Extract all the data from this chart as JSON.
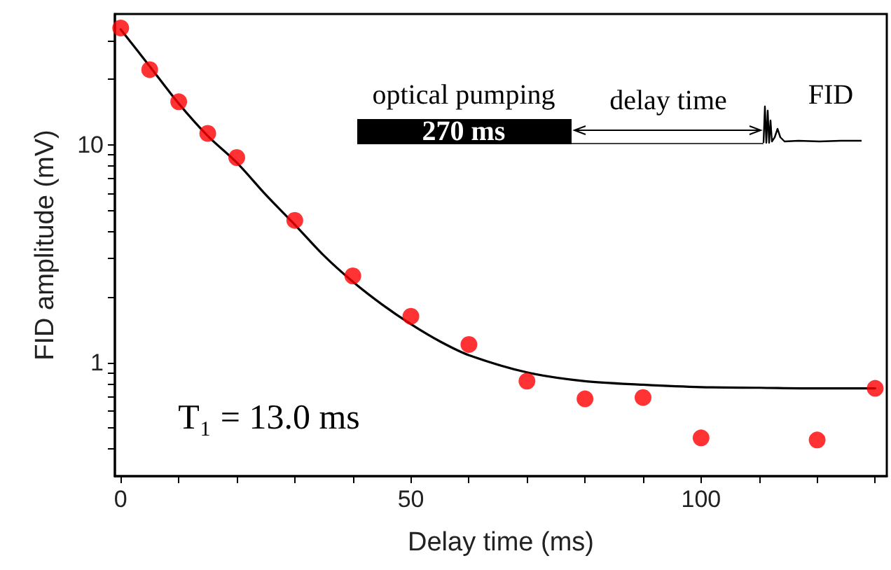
{
  "chart_data": {
    "type": "scatter",
    "xlabel": "Delay time (ms)",
    "ylabel": "FID amplitude (mV)",
    "xlim": [
      -1,
      132
    ],
    "ylim": [
      0.3,
      40
    ],
    "log": "y",
    "xticks": [
      0,
      {
        "value": 10,
        "label": null
      },
      {
        "value": 20,
        "label": null
      },
      {
        "value": 30,
        "label": null
      },
      {
        "value": 40,
        "label": null
      },
      50,
      {
        "value": 60,
        "label": null
      },
      {
        "value": 70,
        "label": null
      },
      {
        "value": 80,
        "label": null
      },
      {
        "value": 90,
        "label": null
      },
      100,
      {
        "value": 110,
        "label": null
      },
      {
        "value": 120,
        "label": null
      },
      {
        "value": 130,
        "label": null
      }
    ],
    "yticks": [
      {
        "value": 0.4,
        "label": null
      },
      {
        "value": 0.5,
        "label": null
      },
      {
        "value": 0.6,
        "label": null
      },
      {
        "value": 0.7,
        "label": null
      },
      {
        "value": 0.8,
        "label": null
      },
      {
        "value": 0.9,
        "label": null
      },
      1,
      {
        "value": 2,
        "label": null
      },
      {
        "value": 3,
        "label": null
      },
      {
        "value": 4,
        "label": null
      },
      {
        "value": 5,
        "label": null
      },
      {
        "value": 6,
        "label": null
      },
      {
        "value": 7,
        "label": null
      },
      {
        "value": 8,
        "label": null
      },
      {
        "value": 9,
        "label": null
      },
      10,
      {
        "value": 20,
        "label": null
      },
      {
        "value": 30,
        "label": null
      }
    ],
    "grid": false,
    "marker": "circle",
    "series": [
      {
        "type": "line",
        "color": "#000000",
        "marker": "none",
        "line_style": "solid",
        "x": [
          0,
          5,
          10,
          15,
          20,
          25,
          30,
          35,
          40,
          45,
          50,
          55,
          60,
          70,
          80,
          90,
          100,
          110,
          120,
          130
        ],
        "values": [
          34,
          23,
          15.5,
          11,
          8.3,
          5.9,
          4.3,
          3.1,
          2.35,
          1.85,
          1.5,
          1.25,
          1.08,
          0.9,
          0.82,
          0.79,
          0.77,
          0.765,
          0.76,
          0.76
        ]
      },
      {
        "color": "#ff0000",
        "x": [
          0,
          5,
          10,
          15,
          20,
          30,
          40,
          50,
          60,
          70,
          80,
          90,
          100,
          120,
          130
        ],
        "values": [
          34.5,
          22.2,
          15.8,
          11.3,
          8.75,
          4.5,
          2.5,
          1.63,
          1.21,
          0.82,
          0.68,
          0.69,
          0.45,
          0.44,
          0.76
        ]
      }
    ],
    "annotations": [
      "optical pumping",
      "270 ms",
      "delay time",
      "FID",
      "T₁ = 13.0 ms"
    ]
  }
}
